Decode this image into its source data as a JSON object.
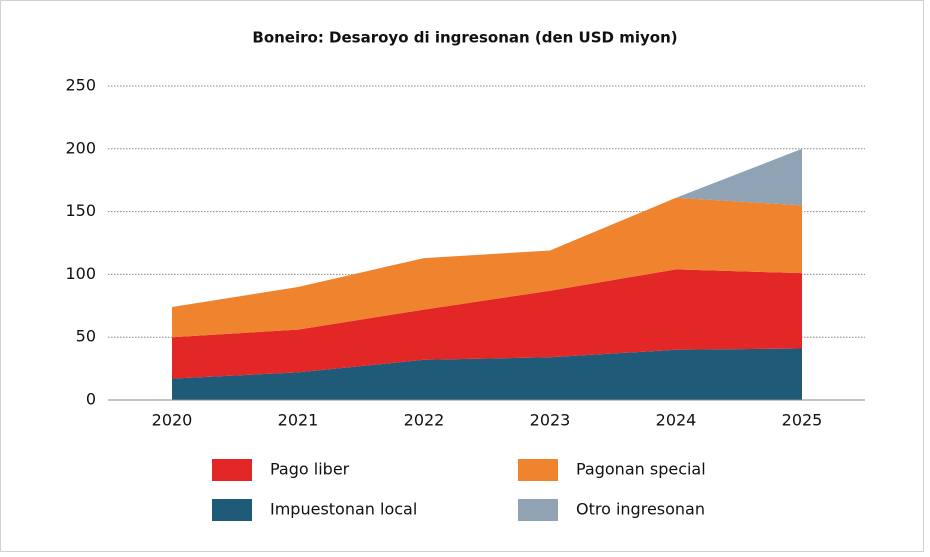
{
  "chart_data": {
    "type": "stacked_area",
    "title": "Boneiro: Desaroyo di ingresonan (den USD miyon)",
    "categories": [
      "2020",
      "2021",
      "2022",
      "2023",
      "2024",
      "2025"
    ],
    "series": [
      {
        "name": "Impuestonan local",
        "color": "#1f5a78",
        "values": [
          17,
          22,
          32,
          34,
          40,
          41
        ]
      },
      {
        "name": "Pago liber",
        "color": "#e32626",
        "values": [
          33,
          34,
          40,
          53,
          64,
          60
        ]
      },
      {
        "name": "Pagonan special",
        "color": "#f0832e",
        "values": [
          24,
          34,
          41,
          32,
          57,
          54
        ]
      },
      {
        "name": "Otro ingresonan",
        "color": "#8fa3b5",
        "values": [
          null,
          null,
          null,
          null,
          0,
          45
        ]
      }
    ],
    "ylim": [
      0,
      250
    ],
    "yticks": [
      0,
      50,
      100,
      150,
      200,
      250
    ],
    "grid": true
  }
}
